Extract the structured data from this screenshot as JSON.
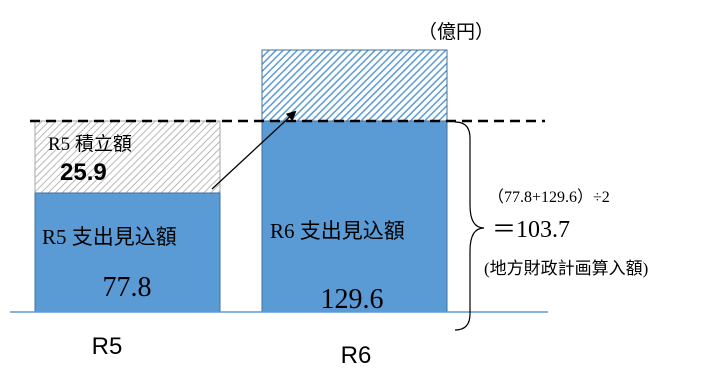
{
  "chart_data": {
    "type": "bar",
    "unit_label": "（億円）",
    "categories": [
      "R5",
      "R6"
    ],
    "series": [
      {
        "name": "R5 支出見込額",
        "values": [
          77.8,
          129.6
        ]
      },
      {
        "name": "R5 積立額",
        "values": [
          25.9,
          null
        ]
      }
    ],
    "bar_labels": {
      "r5_expense_name": "R5 支出見込額",
      "r5_expense_value": "77.8",
      "r5_reserve_name": "R5 積立額",
      "r5_reserve_value": "25.9",
      "r6_expense_name": "R6 支出見込額",
      "r6_expense_value": "129.6"
    },
    "annotation": {
      "formula": "（77.8+129.6）÷2",
      "result": "＝103.7",
      "note": "(地方財政計画算入額)",
      "value": 103.7
    },
    "colors": {
      "bar_fill": "#5b9bd5",
      "bar_stroke": "#41719c",
      "hatch_blue": "#5b9bd5",
      "hatch_grey": "#a6a6a6"
    }
  }
}
